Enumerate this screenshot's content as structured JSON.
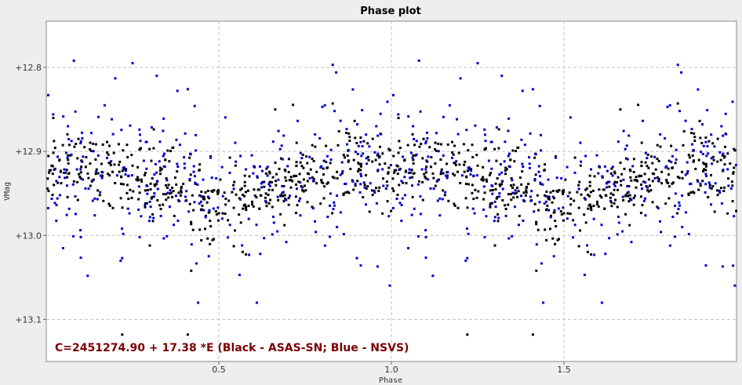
{
  "chart_data": {
    "type": "scatter",
    "title": "Phase plot",
    "xlabel": "Phase",
    "ylabel": "VMag",
    "xlim": [
      0.0,
      2.0
    ],
    "ylim": [
      13.15,
      12.745
    ],
    "y_inverted": true,
    "x_ticks": [
      "0.5",
      "1.0",
      "1.5"
    ],
    "x_tick_values": [
      0.5,
      1.0,
      1.5
    ],
    "y_ticks": [
      "+12.8",
      "+12.9",
      "+13.0",
      "+13.1"
    ],
    "y_tick_values": [
      12.8,
      12.9,
      13.0,
      13.1
    ],
    "grid": true,
    "plot_background": "#ffffff",
    "grid_color": "#c0c0c0",
    "annotation": {
      "text": "C=2451274.90 + 17.38 *E (Black - ASAS-SN; Blue - NSVS)",
      "color": "#7a0000"
    },
    "series": [
      {
        "color": "#000000",
        "points_per_cycle": 480,
        "shape": [
          [
            0.0,
            12.925
          ],
          [
            0.05,
            12.915
          ],
          [
            0.1,
            12.915
          ],
          [
            0.15,
            12.922
          ],
          [
            0.2,
            12.93
          ],
          [
            0.25,
            12.935
          ],
          [
            0.3,
            12.94
          ],
          [
            0.35,
            12.945
          ],
          [
            0.4,
            12.95
          ],
          [
            0.45,
            12.962
          ],
          [
            0.5,
            12.968
          ],
          [
            0.55,
            12.96
          ],
          [
            0.6,
            12.955
          ],
          [
            0.65,
            12.945
          ],
          [
            0.7,
            12.935
          ],
          [
            0.75,
            12.93
          ],
          [
            0.8,
            12.925
          ],
          [
            0.85,
            12.918
          ],
          [
            0.9,
            12.915
          ],
          [
            0.95,
            12.92
          ],
          [
            1.0,
            12.925
          ]
        ],
        "scatter": 0.022,
        "range": [
          12.83,
          13.12
        ],
        "outliers": [
          [
            0.22,
            13.118
          ],
          [
            0.41,
            13.118
          ],
          [
            0.42,
            13.042
          ],
          [
            0.3,
            13.012
          ],
          [
            0.83,
            12.843
          ],
          [
            1.22,
            13.118
          ],
          [
            1.41,
            13.118
          ],
          [
            1.42,
            13.042
          ],
          [
            1.3,
            13.012
          ],
          [
            1.83,
            12.843
          ]
        ]
      },
      {
        "color": "#0000cc",
        "points_per_cycle": 300,
        "shape": [
          [
            0.0,
            12.925
          ],
          [
            0.05,
            12.915
          ],
          [
            0.1,
            12.915
          ],
          [
            0.15,
            12.922
          ],
          [
            0.2,
            12.93
          ],
          [
            0.25,
            12.935
          ],
          [
            0.3,
            12.94
          ],
          [
            0.35,
            12.945
          ],
          [
            0.4,
            12.95
          ],
          [
            0.45,
            12.962
          ],
          [
            0.5,
            12.968
          ],
          [
            0.55,
            12.96
          ],
          [
            0.6,
            12.955
          ],
          [
            0.65,
            12.945
          ],
          [
            0.7,
            12.935
          ],
          [
            0.75,
            12.93
          ],
          [
            0.8,
            12.925
          ],
          [
            0.85,
            12.918
          ],
          [
            0.9,
            12.915
          ],
          [
            0.95,
            12.92
          ],
          [
            1.0,
            12.925
          ]
        ],
        "scatter": 0.045,
        "range": [
          12.78,
          13.12
        ],
        "outliers": [
          [
            0.08,
            12.792
          ],
          [
            0.25,
            12.795
          ],
          [
            0.32,
            12.81
          ],
          [
            0.2,
            12.813
          ],
          [
            0.41,
            12.826
          ],
          [
            0.38,
            12.828
          ],
          [
            0.83,
            12.797
          ],
          [
            0.84,
            12.806
          ],
          [
            0.44,
            13.08
          ],
          [
            0.61,
            13.08
          ],
          [
            0.12,
            13.048
          ],
          [
            0.22,
            13.027
          ],
          [
            0.62,
            13.022
          ],
          [
            0.43,
            12.846
          ],
          [
            0.02,
            12.856
          ],
          [
            0.34,
            12.861
          ],
          [
            1.08,
            12.792
          ],
          [
            1.25,
            12.795
          ],
          [
            1.32,
            12.81
          ],
          [
            1.2,
            12.813
          ],
          [
            1.41,
            12.826
          ],
          [
            1.38,
            12.828
          ],
          [
            1.83,
            12.797
          ],
          [
            1.84,
            12.806
          ],
          [
            1.44,
            13.08
          ],
          [
            1.61,
            13.08
          ],
          [
            1.12,
            13.048
          ],
          [
            1.22,
            13.027
          ],
          [
            1.62,
            13.022
          ],
          [
            1.43,
            12.846
          ],
          [
            1.02,
            12.856
          ],
          [
            1.34,
            12.861
          ],
          [
            1.96,
            13.037
          ],
          [
            0.96,
            13.037
          ],
          [
            0.9,
            13.027
          ],
          [
            0.56,
            13.047
          ],
          [
            1.56,
            13.047
          ],
          [
            1.99,
            13.036
          ]
        ]
      }
    ]
  }
}
